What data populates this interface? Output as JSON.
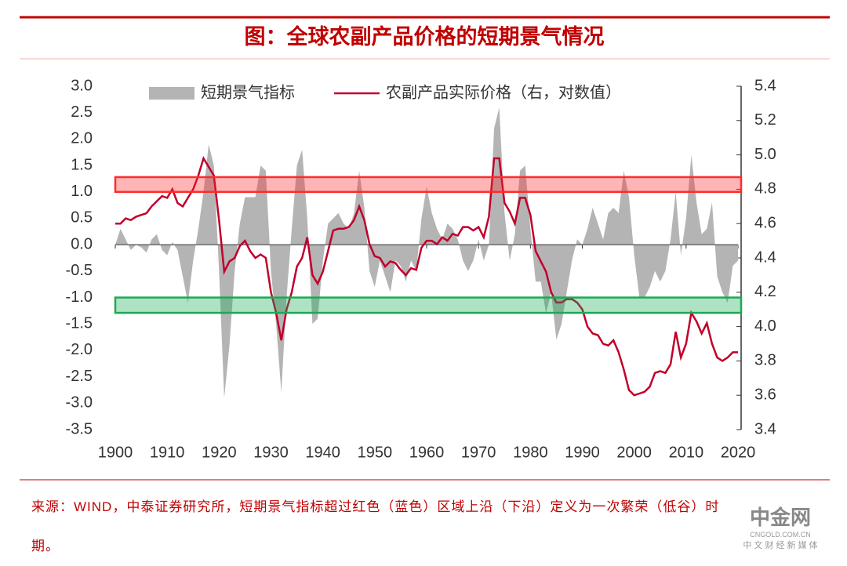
{
  "chart_data": {
    "type": "area-line",
    "title": "图：全球农副产品价格的短期景气情况",
    "note": "来源：WIND，中泰证券研究所，短期景气指标超过红色（蓝色）区域上沿（下沿）定义为一次繁荣（低谷）时期。",
    "watermark": {
      "name": "中金网",
      "site": "CNGOLD.COM.CN",
      "tagline": "中 文 财 经 新 媒 体"
    },
    "legend": "top",
    "x": [
      1900,
      1901,
      1902,
      1903,
      1904,
      1905,
      1906,
      1907,
      1908,
      1909,
      1910,
      1911,
      1912,
      1913,
      1914,
      1915,
      1916,
      1917,
      1918,
      1919,
      1920,
      1921,
      1922,
      1923,
      1924,
      1925,
      1926,
      1927,
      1928,
      1929,
      1930,
      1931,
      1932,
      1933,
      1934,
      1935,
      1936,
      1937,
      1938,
      1939,
      1940,
      1941,
      1942,
      1943,
      1944,
      1945,
      1946,
      1947,
      1948,
      1949,
      1950,
      1951,
      1952,
      1953,
      1954,
      1955,
      1956,
      1957,
      1958,
      1959,
      1960,
      1961,
      1962,
      1963,
      1964,
      1965,
      1966,
      1967,
      1968,
      1969,
      1970,
      1971,
      1972,
      1973,
      1974,
      1975,
      1976,
      1977,
      1978,
      1979,
      1980,
      1981,
      1982,
      1983,
      1984,
      1985,
      1986,
      1987,
      1988,
      1989,
      1990,
      1991,
      1992,
      1993,
      1994,
      1995,
      1996,
      1997,
      1998,
      1999,
      2000,
      2001,
      2002,
      2003,
      2004,
      2005,
      2006,
      2007,
      2008,
      2009,
      2010,
      2011,
      2012,
      2013,
      2014,
      2015,
      2016,
      2017,
      2018,
      2019,
      2020
    ],
    "series": [
      {
        "name": "短期景气指标",
        "kind": "area",
        "color": "#b4b4b4",
        "values": [
          0.0,
          0.3,
          0.1,
          -0.1,
          0.0,
          -0.05,
          -0.15,
          0.1,
          0.2,
          -0.1,
          -0.2,
          0.05,
          -0.1,
          -0.6,
          -1.1,
          -0.3,
          0.3,
          1.0,
          1.9,
          1.5,
          -0.5,
          -2.9,
          -1.9,
          -0.5,
          0.4,
          0.9,
          0.9,
          0.9,
          1.5,
          1.4,
          -0.5,
          -1.5,
          -2.8,
          -1.0,
          0.3,
          1.5,
          1.8,
          0.5,
          -1.5,
          -1.4,
          -0.3,
          0.4,
          0.5,
          0.6,
          0.4,
          0.3,
          0.6,
          1.4,
          0.7,
          -0.5,
          -0.8,
          -0.3,
          -0.6,
          -0.9,
          -0.3,
          -0.4,
          -0.7,
          -0.3,
          -0.5,
          0.5,
          1.1,
          0.6,
          0.3,
          0.1,
          0.4,
          0.3,
          0.1,
          -0.3,
          -0.5,
          -0.3,
          0.1,
          -0.3,
          0.0,
          2.2,
          2.6,
          0.6,
          -0.3,
          0.2,
          1.4,
          1.5,
          0.3,
          -0.7,
          -0.7,
          -1.3,
          -0.9,
          -1.8,
          -1.5,
          -0.9,
          -0.3,
          0.1,
          0.0,
          0.3,
          0.7,
          0.4,
          0.1,
          0.6,
          0.7,
          0.6,
          1.4,
          0.9,
          -0.2,
          -1.0,
          -1.0,
          -0.8,
          -0.5,
          -0.7,
          -0.5,
          0.1,
          1.0,
          -0.2,
          0.5,
          1.7,
          0.8,
          0.2,
          0.3,
          0.8,
          -0.6,
          -0.9,
          -1.1,
          -0.4,
          -0.3
        ]
      },
      {
        "name": "农副产品实际价格（右，对数值）",
        "kind": "line",
        "axis": "y2",
        "color": "#c0002a",
        "values": [
          4.6,
          4.6,
          4.63,
          4.62,
          4.64,
          4.65,
          4.66,
          4.7,
          4.73,
          4.76,
          4.75,
          4.8,
          4.72,
          4.7,
          4.75,
          4.8,
          4.88,
          4.98,
          4.93,
          4.88,
          4.62,
          4.32,
          4.38,
          4.4,
          4.47,
          4.5,
          4.44,
          4.4,
          4.42,
          4.4,
          4.2,
          4.08,
          3.92,
          4.1,
          4.2,
          4.35,
          4.4,
          4.52,
          4.3,
          4.25,
          4.32,
          4.44,
          4.56,
          4.57,
          4.57,
          4.58,
          4.62,
          4.7,
          4.62,
          4.48,
          4.41,
          4.4,
          4.35,
          4.38,
          4.37,
          4.33,
          4.3,
          4.34,
          4.33,
          4.46,
          4.5,
          4.5,
          4.48,
          4.52,
          4.5,
          4.54,
          4.53,
          4.58,
          4.58,
          4.56,
          4.58,
          4.52,
          4.64,
          4.98,
          4.98,
          4.72,
          4.67,
          4.6,
          4.75,
          4.75,
          4.65,
          4.44,
          4.38,
          4.32,
          4.2,
          4.14,
          4.14,
          4.16,
          4.16,
          4.14,
          4.1,
          4.0,
          3.96,
          3.95,
          3.9,
          3.89,
          3.92,
          3.85,
          3.75,
          3.63,
          3.6,
          3.61,
          3.62,
          3.65,
          3.73,
          3.74,
          3.73,
          3.78,
          3.97,
          3.82,
          3.9,
          4.08,
          4.03,
          3.96,
          4.02,
          3.9,
          3.82,
          3.8,
          3.82,
          3.85,
          3.85
        ]
      }
    ],
    "bands": [
      {
        "from": 1.0,
        "to": 1.28,
        "color": "#ff2b2b"
      },
      {
        "from": -1.0,
        "to": -1.29,
        "color": "#1aaa55"
      }
    ],
    "xlim": [
      1900,
      2020
    ],
    "xticks": [
      1900,
      1910,
      1920,
      1930,
      1940,
      1950,
      1960,
      1970,
      1980,
      1990,
      2000,
      2010,
      2020
    ],
    "ylim": [
      -3.5,
      3.0
    ],
    "yticks": [
      -3.5,
      {
        "value": -3,
        "label": "-3.0"
      },
      -2.5,
      {
        "value": -2,
        "label": "-2.0"
      },
      -1.5,
      {
        "value": -1,
        "label": "-1.0"
      },
      -0.5,
      {
        "value": 0,
        "label": "0.0"
      },
      0.5,
      {
        "value": 1,
        "label": "1.0"
      },
      1.5,
      {
        "value": 2,
        "label": "2.0"
      },
      2.5,
      {
        "value": 3,
        "label": "3.0"
      }
    ],
    "y2lim": [
      3.4,
      5.4
    ],
    "y2ticks": [
      3.4,
      3.6,
      3.8,
      {
        "value": 4,
        "label": "4.0"
      },
      4.2,
      4.4,
      4.6,
      4.8,
      {
        "value": 5,
        "label": "5.0"
      },
      5.2,
      5.4
    ]
  }
}
